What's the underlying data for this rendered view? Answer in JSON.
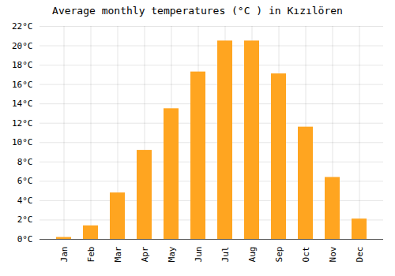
{
  "chart_data": {
    "type": "bar",
    "title": "Average monthly temperatures (°C ) in Kızılören",
    "categories": [
      "Jan",
      "Feb",
      "Mar",
      "Apr",
      "May",
      "Jun",
      "Jul",
      "Aug",
      "Sep",
      "Oct",
      "Nov",
      "Dec"
    ],
    "values": [
      0.2,
      1.4,
      4.8,
      9.2,
      13.5,
      17.3,
      20.5,
      20.5,
      17.1,
      11.6,
      6.4,
      2.1
    ],
    "color": "#FFA520",
    "ylim": [
      0,
      22
    ],
    "yticks": [
      {
        "value": 0,
        "label": "0°C"
      },
      {
        "value": 2,
        "label": "2°C"
      },
      {
        "value": 4,
        "label": "4°C"
      },
      {
        "value": 6,
        "label": "6°C"
      },
      {
        "value": 8,
        "label": "8°C"
      },
      {
        "value": 10,
        "label": "10°C"
      },
      {
        "value": 12,
        "label": "12°C"
      },
      {
        "value": 14,
        "label": "14°C"
      },
      {
        "value": 16,
        "label": "16°C"
      },
      {
        "value": 18,
        "label": "18°C"
      },
      {
        "value": 20,
        "label": "20°C"
      },
      {
        "value": 22,
        "label": "22°C"
      }
    ],
    "grid": true
  }
}
